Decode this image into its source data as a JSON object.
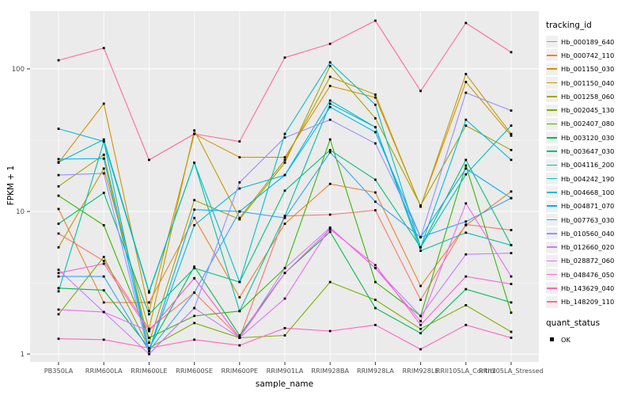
{
  "chart_data": {
    "type": "line",
    "title": "",
    "xlabel": "sample_name",
    "ylabel": "FPKM + 1",
    "y_scale": "log10",
    "y_ticks": [
      1,
      10,
      100
    ],
    "y_minor_ticks": [
      3.162,
      31.62
    ],
    "ylim": [
      0.88,
      255
    ],
    "grid": true,
    "panel_color": "#EBEBEB",
    "grid_color": "#FFFFFF",
    "point_color": "#000000",
    "categories": [
      "PB350LA",
      "RRIM600LA",
      "RRIM600LE",
      "RRIM600SE",
      "RRIM600PE",
      "RRIM901LA",
      "RRIM928BA",
      "RRIM928LA",
      "RRIM928LE",
      "RRII105LA_Control",
      "RRII105LA_Stressed"
    ],
    "legend": {
      "title": "tracking_id",
      "position": "right"
    },
    "quant_status": {
      "title": "quant_status",
      "items": [
        {
          "label": "OK",
          "marker": "black-square"
        }
      ]
    },
    "series": [
      {
        "name": "Hb_000189_640",
        "color": "#F8766D",
        "values": [
          7.0,
          4.5,
          1.5,
          2.7,
          1.3,
          9.3,
          9.5,
          10.2,
          2.4,
          8.1,
          7.4
        ]
      },
      {
        "name": "Hb_000742_110",
        "color": "#EA8331",
        "values": [
          10.4,
          2.3,
          2.3,
          9.0,
          2.5,
          8.2,
          15.6,
          13.6,
          3.0,
          8.0,
          13.8
        ]
      },
      {
        "name": "Hb_001150_030",
        "color": "#D89000",
        "values": [
          22,
          57,
          2.0,
          35,
          24,
          24,
          76,
          63,
          10.9,
          81,
          34
        ]
      },
      {
        "name": "Hb_001150_040",
        "color": "#C09B00",
        "values": [
          5.6,
          20,
          1.5,
          37,
          9.0,
          23,
          88,
          66,
          10.8,
          92,
          35
        ]
      },
      {
        "name": "Hb_001258_060",
        "color": "#A3A500",
        "values": [
          15,
          25,
          1.2,
          12,
          8.8,
          22,
          105,
          45,
          11.0,
          40,
          27
        ]
      },
      {
        "name": "Hb_002045_130",
        "color": "#7CAE00",
        "values": [
          1.9,
          4.8,
          1.1,
          1.65,
          1.3,
          1.35,
          3.2,
          2.4,
          1.5,
          2.2,
          1.43
        ]
      },
      {
        "name": "Hb_002407_080",
        "color": "#39B600",
        "values": [
          12.9,
          8.0,
          1.3,
          1.85,
          2.0,
          4.0,
          32,
          3.2,
          1.85,
          21,
          1.95
        ]
      },
      {
        "name": "Hb_003120_030",
        "color": "#00BB4E",
        "values": [
          2.9,
          2.8,
          1.1,
          4.1,
          1.35,
          3.7,
          7.2,
          2.1,
          1.4,
          2.85,
          2.3
        ]
      },
      {
        "name": "Hb_003647_030",
        "color": "#00BF7D",
        "values": [
          8.2,
          13.5,
          1.9,
          4.0,
          3.2,
          14,
          27,
          16.7,
          5.6,
          23,
          5.8
        ]
      },
      {
        "name": "Hb_004116_200",
        "color": "#00C1A3",
        "values": [
          2.75,
          31,
          2.7,
          22,
          2.0,
          9.3,
          57,
          39,
          5.3,
          7.1,
          5.8
        ]
      },
      {
        "name": "Hb_004242_190",
        "color": "#00BFC4",
        "values": [
          22.2,
          32,
          2.75,
          22,
          3.2,
          35,
          111,
          56,
          5.6,
          18.2,
          40
        ]
      },
      {
        "name": "Hb_004668_100",
        "color": "#00BAE0",
        "values": [
          38,
          31,
          1.05,
          8.0,
          14.5,
          18,
          60,
          39,
          5.6,
          44,
          23
        ]
      },
      {
        "name": "Hb_004871_070",
        "color": "#00B0F6",
        "values": [
          23.3,
          23.5,
          1.05,
          10.3,
          10,
          18,
          54,
          36,
          6.6,
          20,
          12.4
        ]
      },
      {
        "name": "Hb_007763_030",
        "color": "#35A2FF",
        "values": [
          3.5,
          3.5,
          1.05,
          2.7,
          10,
          9.0,
          26,
          11.7,
          6.6,
          8.5,
          12.4
        ]
      },
      {
        "name": "Hb_010560_040",
        "color": "#9590FF",
        "values": [
          18,
          18.5,
          1.0,
          2.1,
          16,
          33,
          44,
          30,
          6.6,
          68,
          51
        ]
      },
      {
        "name": "Hb_012660_020",
        "color": "#C77CFF",
        "values": [
          3.9,
          1.97,
          1.0,
          2.1,
          1.3,
          4.0,
          7.7,
          4.0,
          1.85,
          5.0,
          5.1
        ]
      },
      {
        "name": "Hb_028872_060",
        "color": "#E76BF3",
        "values": [
          2.05,
          1.97,
          1.45,
          3.4,
          1.3,
          2.45,
          7.7,
          4.0,
          1.7,
          11.4,
          3.5
        ]
      },
      {
        "name": "Hb_048476_050",
        "color": "#FA62DB",
        "values": [
          3.7,
          4.3,
          1.45,
          3.4,
          1.3,
          3.7,
          7.5,
          4.2,
          1.6,
          3.5,
          3.1
        ]
      },
      {
        "name": "Hb_143629_040",
        "color": "#FF62BC",
        "values": [
          1.28,
          1.26,
          1.1,
          1.26,
          1.15,
          1.52,
          1.45,
          1.6,
          1.08,
          1.6,
          1.3
        ]
      },
      {
        "name": "Hb_148209_110",
        "color": "#FF6A98",
        "values": [
          115,
          140,
          23,
          35,
          31,
          120,
          150,
          218,
          70,
          210,
          131
        ]
      }
    ]
  }
}
